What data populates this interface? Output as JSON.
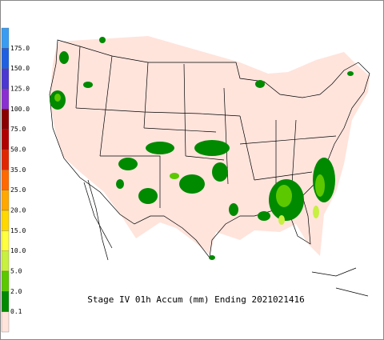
{
  "title": "Stage IV 01h Accum (mm) Ending 2021021416",
  "legend": {
    "labels": [
      "175.0",
      "150.0",
      "125.0",
      "100.0",
      "75.0",
      "50.0",
      "35.0",
      "25.0",
      "20.0",
      "15.0",
      "10.0",
      "5.0",
      "2.0",
      "0.1"
    ],
    "colors": [
      "#3a9cf0",
      "#2060e0",
      "#4a38d0",
      "#8a30d0",
      "#8a0000",
      "#b00000",
      "#e02800",
      "#ff6a00",
      "#ffa800",
      "#ffd800",
      "#ffff40",
      "#c8f040",
      "#5cc800",
      "#008a00",
      "#ffe4dc"
    ]
  }
}
